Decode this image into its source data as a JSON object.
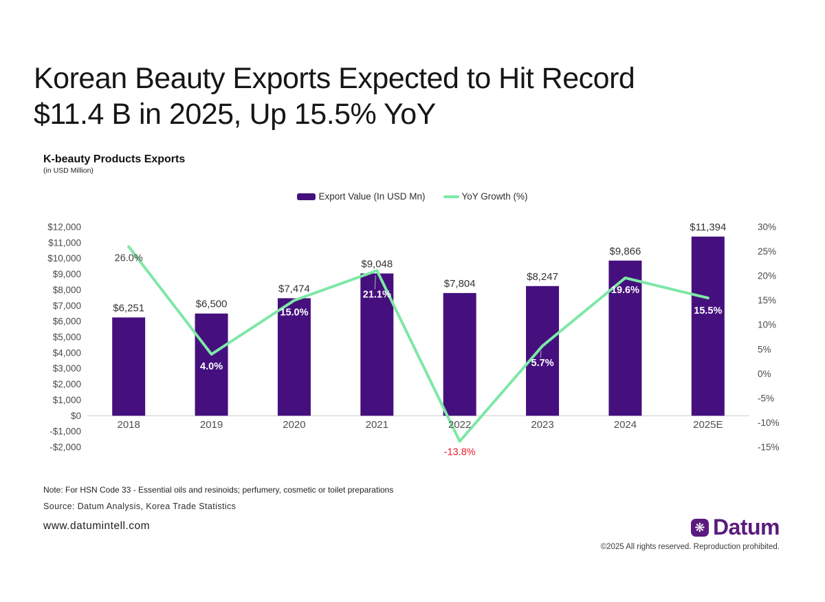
{
  "page": {
    "title_line1": "Korean Beauty Exports Expected to Hit Record",
    "title_line2": "$11.4 B in 2025, Up 15.5% YoY"
  },
  "chart": {
    "title": "K-beauty Products Exports",
    "subtitle": "(in USD Million)",
    "legend": [
      {
        "label": "Export Value (In USD Mn)",
        "color": "#45107E",
        "type": "bar"
      },
      {
        "label": "YoY Growth (%)",
        "color": "#7DE8A6",
        "type": "line"
      }
    ]
  },
  "chart_data": {
    "type": "bar+line",
    "title": "K-beauty Products Exports",
    "subtitle": "(in USD Million)",
    "categories": [
      "2018",
      "2019",
      "2020",
      "2021",
      "2022",
      "2023",
      "2024",
      "2025E"
    ],
    "series": [
      {
        "name": "Export Value (In USD Mn)",
        "type": "bar",
        "axis": "left",
        "color": "#45107E",
        "values": [
          6251,
          6500,
          7474,
          9048,
          7804,
          8247,
          9866,
          11394
        ],
        "labels": [
          "$6,251",
          "$6,500",
          "$7,474",
          "$9,048",
          "$7,804",
          "$8,247",
          "$9,866",
          "$11,394"
        ]
      },
      {
        "name": "YoY Growth (%)",
        "type": "line",
        "axis": "right",
        "color": "#7DE8A6",
        "values": [
          26.0,
          4.0,
          15.0,
          21.1,
          -13.8,
          5.7,
          19.6,
          15.5
        ],
        "labels": [
          "26.0%",
          "4.0%",
          "15.0%",
          "21.1%",
          "-13.8%",
          "5.7%",
          "19.6%",
          "15.5%"
        ],
        "label_colors": [
          "#3f3f3f",
          "#ffffff",
          "#ffffff",
          "#ffffff",
          "#ED1C24",
          "#ffffff",
          "#ffffff",
          "#ffffff"
        ]
      }
    ],
    "left_axis": {
      "min": -2000,
      "max": 12000,
      "ticks": [
        "$12,000",
        "$11,000",
        "$10,000",
        "$9,000",
        "$8,000",
        "$7,000",
        "$6,000",
        "$5,000",
        "$4,000",
        "$3,000",
        "$2,000",
        "$1,000",
        "$0",
        "-$1,000",
        "-$2,000"
      ]
    },
    "right_axis": {
      "min": -15,
      "max": 30,
      "ticks": [
        "30%",
        "25%",
        "20%",
        "15%",
        "10%",
        "5%",
        "0%",
        "-5%",
        "-10%",
        "-15%"
      ]
    },
    "grid": false,
    "legend_position": "top-center"
  },
  "footer": {
    "note": "Note: For HSN Code 33 - Essential oils and resinoids; perfumery, cosmetic or toilet preparations",
    "source": "Source: Datum Analysis, Korea Trade Statistics",
    "website": "www.datumintell.com",
    "brand": "Datum",
    "brand_color": "#5A1B7E",
    "brand_icon": "snowflake-medallion",
    "copyright": "©2025 All rights reserved. Reproduction prohibited."
  }
}
